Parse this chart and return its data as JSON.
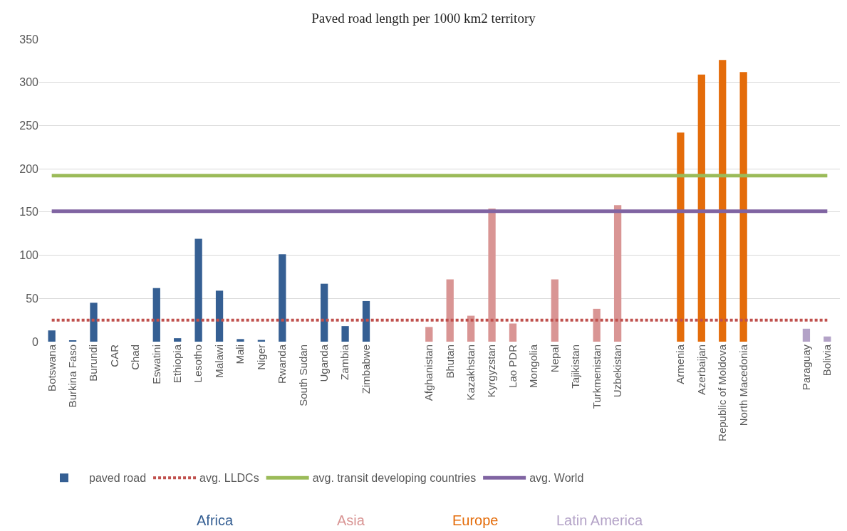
{
  "chart_data": {
    "type": "bar",
    "title": "Paved road length per 1000 km2 territory",
    "categories": [
      "Botswana",
      "Burkina Faso",
      "Burundi",
      "CAR",
      "Chad",
      "Eswatini",
      "Ethiopia",
      "Lesotho",
      "Malawi",
      "Mali",
      "Niger",
      "Rwanda",
      "South Sudan",
      "Uganda",
      "Zambia",
      "Zimbabwe",
      null,
      null,
      "Afghanistan",
      "Bhutan",
      "Kazakhstan",
      "Kyrgyzstan",
      "Lao PDR",
      "Mongolia",
      "Nepal",
      "Tajikistan",
      "Turkmenistan",
      "Uzbekistan",
      null,
      null,
      "Armenia",
      "Azerbaijan",
      "Republic of Moldova",
      "North Macedonia",
      null,
      null,
      "Paraguay",
      "Bolivia"
    ],
    "series": [
      {
        "name": "paved road",
        "values": [
          13,
          1,
          45,
          0,
          0,
          62,
          4,
          119,
          59,
          3,
          2,
          101,
          0,
          67,
          18,
          47,
          null,
          null,
          17,
          72,
          30,
          154,
          21,
          0,
          72,
          0,
          38,
          158,
          null,
          null,
          242,
          309,
          326,
          312,
          null,
          null,
          15,
          6
        ],
        "colors": [
          "#355f93",
          "#355f93",
          "#355f93",
          "#355f93",
          "#355f93",
          "#355f93",
          "#355f93",
          "#355f93",
          "#355f93",
          "#355f93",
          "#355f93",
          "#355f93",
          "#355f93",
          "#355f93",
          "#355f93",
          "#355f93",
          "#ffffff",
          "#ffffff",
          "#d99594",
          "#d99594",
          "#d99594",
          "#d99594",
          "#d99594",
          "#d99594",
          "#d99594",
          "#d99594",
          "#d99594",
          "#d99594",
          "#ffffff",
          "#ffffff",
          "#e46c0a",
          "#e46c0a",
          "#e46c0a",
          "#e46c0a",
          "#ffffff",
          "#ffffff",
          "#b3a2c7",
          "#b3a2c7"
        ]
      },
      {
        "name": "avg. LLDCs",
        "type": "line",
        "color": "#c0504d",
        "line_style": "dotted",
        "values": [
          25,
          25,
          25,
          25,
          25,
          25,
          25,
          25,
          25,
          25,
          25,
          25,
          25,
          25,
          25,
          25,
          25,
          25,
          25,
          25,
          25,
          25,
          25,
          25,
          25,
          25,
          25,
          25,
          25,
          25,
          25,
          25,
          25,
          25,
          25,
          25,
          25,
          25
        ]
      },
      {
        "name": "avg. transit developing countries",
        "type": "line",
        "color": "#9bbb59",
        "line_style": "solid",
        "values": [
          192,
          192,
          192,
          192,
          192,
          192,
          192,
          192,
          192,
          192,
          192,
          192,
          192,
          192,
          192,
          192,
          192,
          192,
          192,
          192,
          192,
          192,
          192,
          192,
          192,
          192,
          192,
          192,
          192,
          192,
          192,
          192,
          192,
          192,
          192,
          192,
          192,
          192
        ]
      },
      {
        "name": "avg. World",
        "type": "line",
        "color": "#8064a2",
        "line_style": "solid",
        "values": [
          151,
          151,
          151,
          151,
          151,
          151,
          151,
          151,
          151,
          151,
          151,
          151,
          151,
          151,
          151,
          151,
          151,
          151,
          151,
          151,
          151,
          151,
          151,
          151,
          151,
          151,
          151,
          151,
          151,
          151,
          151,
          151,
          151,
          151,
          151,
          151,
          151,
          151
        ]
      }
    ],
    "ylim": [
      0,
      350
    ],
    "yticks": [
      0,
      50,
      100,
      150,
      200,
      250,
      300,
      350
    ],
    "grid": "y",
    "legend": "bottom",
    "marker": "none",
    "annotations": [
      "Africa",
      "Asia",
      "Europe",
      "Latin America"
    ]
  }
}
